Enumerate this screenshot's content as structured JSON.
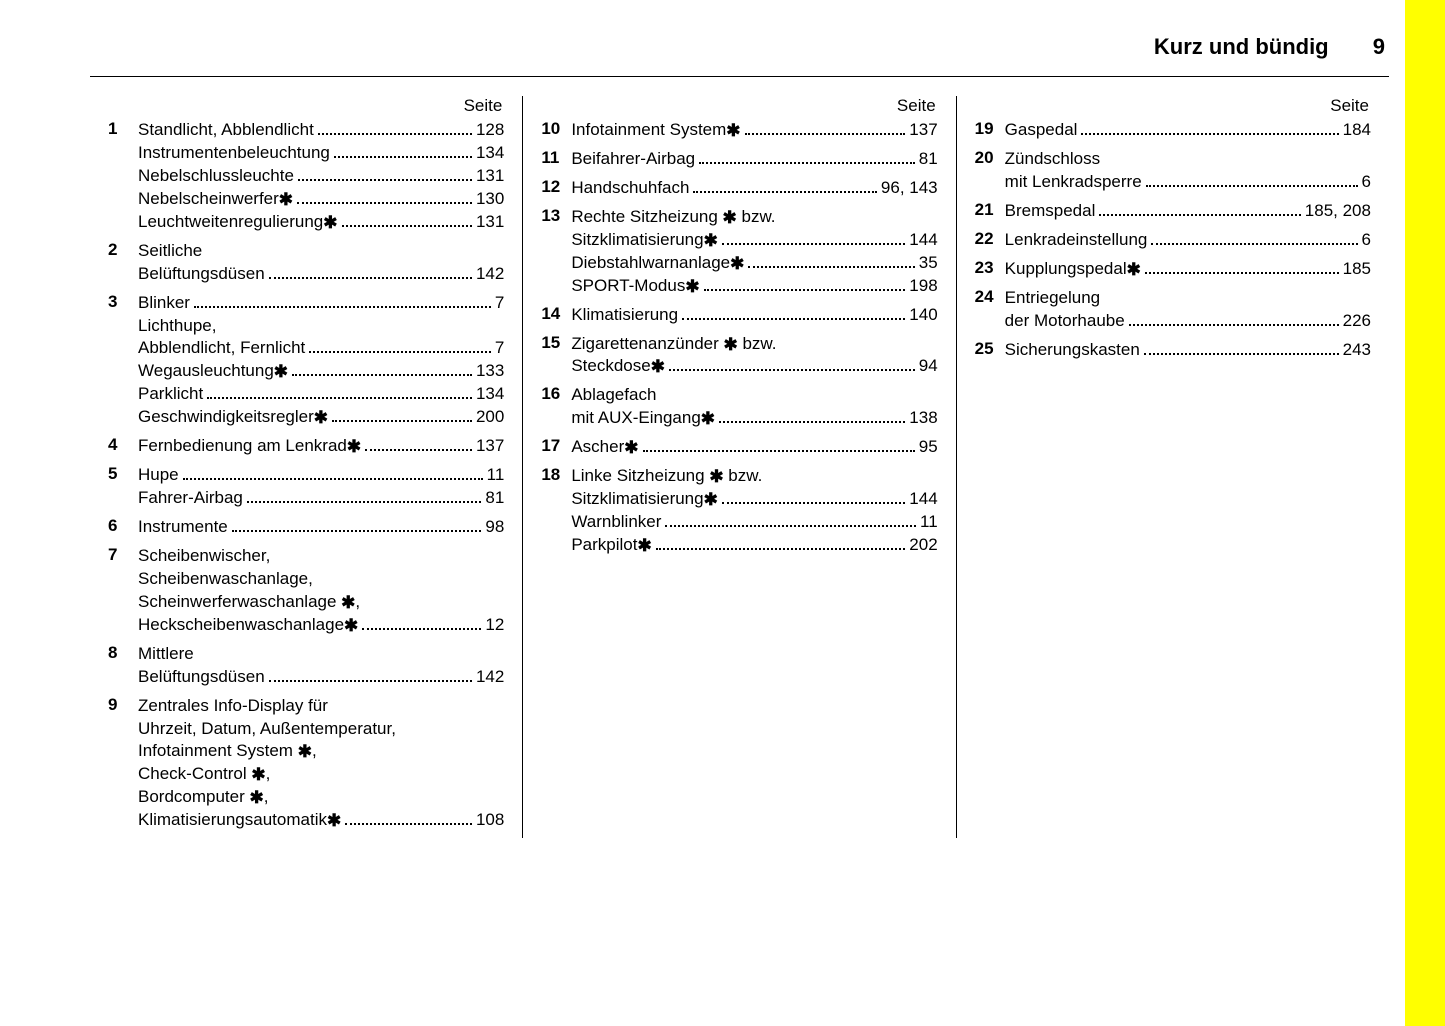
{
  "header": {
    "title": "Kurz und bündig",
    "page": "9"
  },
  "colHeader": "Seite",
  "star": "✱",
  "columns": [
    [
      {
        "num": "1",
        "lines": [
          {
            "label": "Standlicht, Abblendlicht",
            "page": "128"
          },
          {
            "label": "Instrumentenbeleuchtung",
            "page": "134"
          },
          {
            "label": "Nebelschlussleuchte",
            "page": "131"
          },
          {
            "label": "Nebelscheinwerfer ",
            "star": true,
            "page": "130"
          },
          {
            "label": "Leuchtweitenregulierung ",
            "star": true,
            "page": "131"
          }
        ]
      },
      {
        "num": "2",
        "lines": [
          {
            "label": "Seitliche",
            "nodots": true
          },
          {
            "label": "Belüftungsdüsen",
            "page": "142"
          }
        ]
      },
      {
        "num": "3",
        "lines": [
          {
            "label": "Blinker",
            "page": "7"
          },
          {
            "label": "Lichthupe,",
            "nodots": true
          },
          {
            "label": "Abblendlicht, Fernlicht",
            "page": "7"
          },
          {
            "label": "Wegausleuchtung ",
            "star": true,
            "page": "133"
          },
          {
            "label": "Parklicht",
            "page": "134"
          },
          {
            "label": "Geschwindigkeitsregler ",
            "star": true,
            "page": "200"
          }
        ]
      },
      {
        "num": "4",
        "lines": [
          {
            "label": "Fernbedienung am Lenkrad ",
            "star": true,
            "page": "137"
          }
        ]
      },
      {
        "num": "5",
        "lines": [
          {
            "label": "Hupe",
            "page": "11"
          },
          {
            "label": "Fahrer-Airbag",
            "page": "81"
          }
        ]
      },
      {
        "num": "6",
        "lines": [
          {
            "label": "Instrumente",
            "page": "98"
          }
        ]
      },
      {
        "num": "7",
        "lines": [
          {
            "label": "Scheibenwischer,",
            "nodots": true
          },
          {
            "label": "Scheibenwaschanlage,",
            "nodots": true
          },
          {
            "label": "Scheinwerferwaschanlage ",
            "star": true,
            "trail": ",",
            "nodots": true
          },
          {
            "label": "Heckscheibenwaschanlage ",
            "star": true,
            "page": "12"
          }
        ]
      },
      {
        "num": "8",
        "lines": [
          {
            "label": "Mittlere",
            "nodots": true
          },
          {
            "label": "Belüftungsdüsen",
            "page": "142"
          }
        ]
      },
      {
        "num": "9",
        "lines": [
          {
            "label": "Zentrales Info-Display für",
            "nodots": true
          },
          {
            "label": "Uhrzeit, Datum, Außentemperatur,",
            "nodots": true
          },
          {
            "label": "Infotainment System ",
            "star": true,
            "trail": ",",
            "nodots": true
          },
          {
            "label": "Check-Control ",
            "star": true,
            "trail": ",",
            "nodots": true
          },
          {
            "label": "Bordcomputer ",
            "star": true,
            "trail": ",",
            "nodots": true
          },
          {
            "label": "Klimatisierungsautomatik ",
            "star": true,
            "page": "108"
          }
        ]
      }
    ],
    [
      {
        "num": "10",
        "lines": [
          {
            "label": "Infotainment System ",
            "star": true,
            "page": "137"
          }
        ]
      },
      {
        "num": "11",
        "lines": [
          {
            "label": "Beifahrer-Airbag",
            "page": "81"
          }
        ]
      },
      {
        "num": "12",
        "lines": [
          {
            "label": "Handschuhfach",
            "page": "96, 143"
          }
        ]
      },
      {
        "num": "13",
        "lines": [
          {
            "label": "Rechte Sitzheizung ",
            "star": true,
            "trail": " bzw.",
            "nodots": true
          },
          {
            "label": "Sitzklimatisierung ",
            "star": true,
            "page": "144"
          },
          {
            "label": "Diebstahlwarnanlage ",
            "star": true,
            "page": "35"
          },
          {
            "label": "SPORT-Modus ",
            "star": true,
            "page": "198"
          }
        ]
      },
      {
        "num": "14",
        "lines": [
          {
            "label": "Klimatisierung",
            "page": "140"
          }
        ]
      },
      {
        "num": "15",
        "lines": [
          {
            "label": "Zigarettenanzünder ",
            "star": true,
            "trail": " bzw.",
            "nodots": true
          },
          {
            "label": "Steckdose ",
            "star": true,
            "page": "94"
          }
        ]
      },
      {
        "num": "16",
        "lines": [
          {
            "label": "Ablagefach",
            "nodots": true
          },
          {
            "label": "mit AUX-Eingang ",
            "star": true,
            "page": "138"
          }
        ]
      },
      {
        "num": "17",
        "lines": [
          {
            "label": "Ascher ",
            "star": true,
            "page": "95"
          }
        ]
      },
      {
        "num": "18",
        "lines": [
          {
            "label": "Linke Sitzheizung ",
            "star": true,
            "trail": " bzw.",
            "nodots": true
          },
          {
            "label": "Sitzklimatisierung ",
            "star": true,
            "page": "144"
          },
          {
            "label": "Warnblinker",
            "page": "11"
          },
          {
            "label": "Parkpilot ",
            "star": true,
            "page": "202"
          }
        ]
      }
    ],
    [
      {
        "num": "19",
        "lines": [
          {
            "label": "Gaspedal",
            "page": "184"
          }
        ]
      },
      {
        "num": "20",
        "lines": [
          {
            "label": "Zündschloss",
            "nodots": true
          },
          {
            "label": "mit Lenkradsperre",
            "page": "6"
          }
        ]
      },
      {
        "num": "21",
        "lines": [
          {
            "label": "Bremspedal",
            "page": "185, 208"
          }
        ]
      },
      {
        "num": "22",
        "lines": [
          {
            "label": "Lenkradeinstellung",
            "page": "6"
          }
        ]
      },
      {
        "num": "23",
        "lines": [
          {
            "label": "Kupplungspedal ",
            "star": true,
            "page": "185"
          }
        ]
      },
      {
        "num": "24",
        "lines": [
          {
            "label": "Entriegelung",
            "nodots": true
          },
          {
            "label": "der Motorhaube",
            "page": "226"
          }
        ]
      },
      {
        "num": "25",
        "lines": [
          {
            "label": "Sicherungskasten",
            "page": "243"
          }
        ]
      }
    ]
  ]
}
